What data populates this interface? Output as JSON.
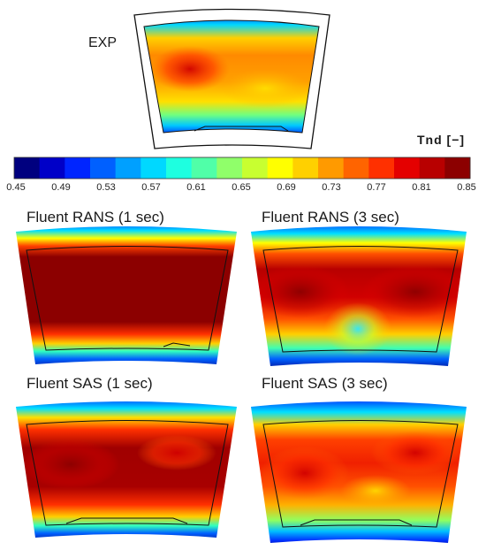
{
  "figure": {
    "panels": [
      {
        "id": "exp",
        "title": "EXP"
      },
      {
        "id": "rans1",
        "title": "Fluent RANS (1 sec)"
      },
      {
        "id": "rans3",
        "title": "Fluent RANS (3 sec)"
      },
      {
        "id": "sas1",
        "title": "Fluent SAS (1 sec)"
      },
      {
        "id": "sas3",
        "title": "Fluent SAS (3 sec)"
      }
    ],
    "colorbar": {
      "label": "Tnd [−]",
      "min": 0.45,
      "max": 0.85,
      "ticks": [
        "0.45",
        "0.49",
        "0.53",
        "0.57",
        "0.61",
        "0.65",
        "0.69",
        "0.73",
        "0.77",
        "0.81",
        "0.85"
      ],
      "colors": [
        "#00007f",
        "#0000c8",
        "#0025ff",
        "#0060ff",
        "#00a0ff",
        "#00d8ff",
        "#1effe0",
        "#50ffa8",
        "#90ff6a",
        "#c8ff30",
        "#ffff00",
        "#ffd000",
        "#ff9a00",
        "#ff6400",
        "#ff3000",
        "#e40000",
        "#b80000",
        "#8c0000"
      ]
    }
  }
}
